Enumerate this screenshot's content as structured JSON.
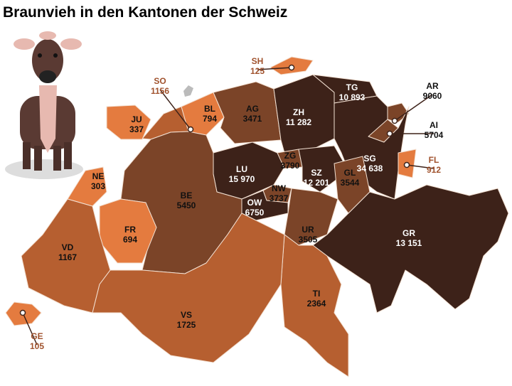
{
  "title": "Braunvieh in den Kantonen der Schweiz",
  "cantons": [
    {
      "code": "SH",
      "value": "125"
    },
    {
      "code": "SO",
      "value": "1156"
    },
    {
      "code": "BL",
      "value": "794"
    },
    {
      "code": "JU",
      "value": "337"
    },
    {
      "code": "AG",
      "value": "3471"
    },
    {
      "code": "ZH",
      "value": "11 282"
    },
    {
      "code": "TG",
      "value": "10 893"
    },
    {
      "code": "AR",
      "value": "9060"
    },
    {
      "code": "AI",
      "value": "5704"
    },
    {
      "code": "NE",
      "value": "303"
    },
    {
      "code": "LU",
      "value": "15 970"
    },
    {
      "code": "ZG",
      "value": "3790"
    },
    {
      "code": "SZ",
      "value": "12 201"
    },
    {
      "code": "SG",
      "value": "34 638"
    },
    {
      "code": "FL",
      "value": "912"
    },
    {
      "code": "GL",
      "value": "3544"
    },
    {
      "code": "BE",
      "value": "5450"
    },
    {
      "code": "NW",
      "value": "3737"
    },
    {
      "code": "OW",
      "value": "6750"
    },
    {
      "code": "UR",
      "value": "3505"
    },
    {
      "code": "FR",
      "value": "694"
    },
    {
      "code": "VD",
      "value": "1167"
    },
    {
      "code": "GR",
      "value": "13 151"
    },
    {
      "code": "TI",
      "value": "2364"
    },
    {
      "code": "VS",
      "value": "1725"
    },
    {
      "code": "GE",
      "value": "105"
    }
  ]
}
